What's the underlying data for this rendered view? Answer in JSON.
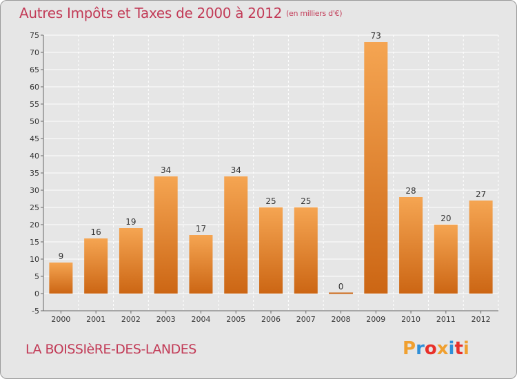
{
  "title": "Autres Impôts et Taxes de 2000 à 2012",
  "subtitle": "(en milliers d'€)",
  "commune": "LA BOISSIèRE-DES-LANDES",
  "logo": {
    "letters": [
      "P",
      "r",
      "o",
      "x",
      "i",
      "t",
      "i"
    ],
    "colors": [
      "#f0a030",
      "#2f8fd8",
      "#e8302a",
      "#f0a030",
      "#2f8fd8",
      "#e8302a",
      "#f0a030"
    ]
  },
  "colors": {
    "bar_light": "#f5a552",
    "bar_dark": "#cc6614",
    "title": "#c23b57",
    "background": "#e6e6e6"
  },
  "chart_data": {
    "type": "bar",
    "categories": [
      "2000",
      "2001",
      "2002",
      "2003",
      "2004",
      "2005",
      "2006",
      "2007",
      "2008",
      "2009",
      "2010",
      "2011",
      "2012"
    ],
    "values": [
      9,
      16,
      19,
      34,
      17,
      34,
      25,
      25,
      0,
      73,
      28,
      20,
      27
    ],
    "data_labels": [
      "9",
      "16",
      "19",
      "34",
      "17",
      "34",
      "25",
      "25",
      "0",
      "73",
      "28",
      "20",
      "27"
    ],
    "y_ticks": [
      "-5",
      "0",
      "5",
      "10",
      "15",
      "20",
      "25",
      "30",
      "35",
      "40",
      "45",
      "50",
      "55",
      "60",
      "65",
      "70",
      "75"
    ],
    "ylim": [
      -5,
      75
    ],
    "grid": true,
    "title": "Autres Impôts et Taxes de 2000 à 2012",
    "xlabel": "",
    "ylabel": ""
  }
}
